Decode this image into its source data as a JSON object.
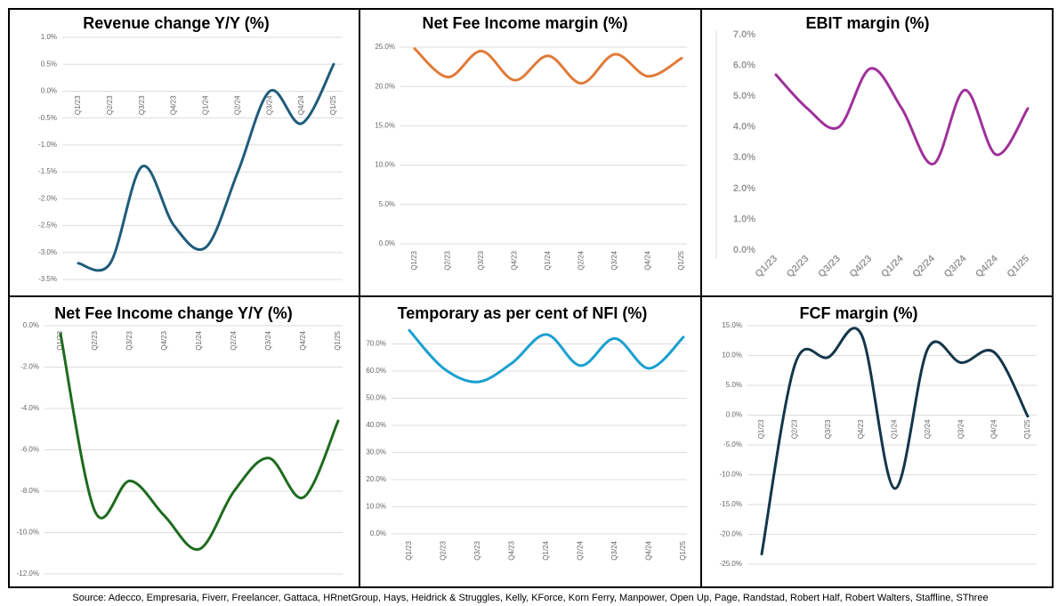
{
  "chart_data": [
    {
      "type": "line",
      "title": "Revenue change Y/Y (%)",
      "categories": [
        "Q1/23",
        "Q2/23",
        "Q3/23",
        "Q4/23",
        "Q1/24",
        "Q2/24",
        "Q3/24",
        "Q4/24",
        "Q1/25"
      ],
      "values": [
        -3.2,
        -3.2,
        -1.4,
        -2.5,
        -2.9,
        -1.5,
        0.0,
        -0.6,
        0.5
      ],
      "color": "#1f5c7a",
      "grid": true,
      "ylim": [
        -3.5,
        1.0
      ],
      "yticks": [
        {
          "value": -3.5,
          "label": "-3.5%"
        },
        {
          "value": -3.0,
          "label": "-3.0%"
        },
        {
          "value": -2.5,
          "label": "-2.5%"
        },
        {
          "value": -2.0,
          "label": "-2.0%"
        },
        {
          "value": -1.5,
          "label": "-1.5%"
        },
        {
          "value": -1.0,
          "label": "-1.0%"
        },
        {
          "value": -0.5,
          "label": "-0.5%"
        },
        {
          "value": 0,
          "label": "0.0%"
        },
        {
          "value": 0.5,
          "label": "0.5%"
        },
        {
          "value": 1.0,
          "label": "1.0%"
        }
      ]
    },
    {
      "type": "line",
      "title": "Net Fee Income  margin (%)",
      "categories": [
        "Q1/23",
        "Q2/23",
        "Q3/23",
        "Q4/23",
        "Q1/24",
        "Q2/24",
        "Q3/24",
        "Q4/24",
        "Q1/25"
      ],
      "values": [
        24.8,
        21.2,
        24.5,
        20.8,
        23.9,
        20.4,
        24.1,
        21.3,
        23.6
      ],
      "color": "#e07b39",
      "grid": true,
      "ylim": [
        0,
        25
      ],
      "yticks": [
        {
          "value": 0,
          "label": "0.0%"
        },
        {
          "value": 5,
          "label": "5.0%"
        },
        {
          "value": 10,
          "label": "10.0%"
        },
        {
          "value": 15,
          "label": "15.0%"
        },
        {
          "value": 20,
          "label": "20.0%"
        },
        {
          "value": 25,
          "label": "25.0%"
        }
      ]
    },
    {
      "type": "line",
      "title": "EBIT margin (%)",
      "categories": [
        "Q1/23",
        "Q2/23",
        "Q3/23",
        "Q4/23",
        "Q1/24",
        "Q2/24",
        "Q3/24",
        "Q4/24",
        "Q1/25"
      ],
      "values": [
        5.7,
        4.6,
        4.0,
        5.9,
        4.6,
        2.8,
        5.2,
        3.1,
        4.6
      ],
      "color": "#a0309a",
      "grid": false,
      "ylim": [
        0,
        7
      ],
      "yticks": [
        {
          "value": 0,
          "label": "0.0%"
        },
        {
          "value": 1,
          "label": "1.0%"
        },
        {
          "value": 2,
          "label": "2.0%"
        },
        {
          "value": 3,
          "label": "3.0%"
        },
        {
          "value": 4,
          "label": "4.0%"
        },
        {
          "value": 5,
          "label": "5.0%"
        },
        {
          "value": 6,
          "label": "6.0%"
        },
        {
          "value": 7,
          "label": "7.0%"
        }
      ]
    },
    {
      "type": "line",
      "title": "Net Fee Income change Y/Y (%)",
      "categories": [
        "Q1/23",
        "Q2/23",
        "Q3/23",
        "Q4/23",
        "Q1/24",
        "Q2/24",
        "Q3/24",
        "Q4/24",
        "Q1/25"
      ],
      "values": [
        -0.4,
        -9.0,
        -7.5,
        -9.2,
        -10.8,
        -8.0,
        -6.4,
        -8.3,
        -4.6
      ],
      "color": "#1e6b1e",
      "grid": true,
      "ylim": [
        -12,
        0
      ],
      "yticks": [
        {
          "value": -12,
          "label": "-12.0%"
        },
        {
          "value": -10,
          "label": "-10.0%"
        },
        {
          "value": -8,
          "label": "-8.0%"
        },
        {
          "value": -6,
          "label": "-6.0%"
        },
        {
          "value": -4,
          "label": "-4.0%"
        },
        {
          "value": -2,
          "label": "-2.0%"
        },
        {
          "value": 0,
          "label": "0.0%"
        }
      ]
    },
    {
      "type": "line",
      "title": "Temporary as per cent of NFI (%)",
      "categories": [
        "Q1/23",
        "Q2/23",
        "Q3/23",
        "Q4/23",
        "Q1/24",
        "Q2/24",
        "Q3/24",
        "Q4/24",
        "Q1/25"
      ],
      "values": [
        75,
        61,
        56,
        63,
        73.5,
        62,
        72,
        61,
        72.5
      ],
      "color": "#1aa0d0",
      "grid": true,
      "ylim": [
        0,
        80
      ],
      "yticks": [
        {
          "value": 0,
          "label": "0.0%"
        },
        {
          "value": 10,
          "label": "10.0%"
        },
        {
          "value": 20,
          "label": "20.0%"
        },
        {
          "value": 30,
          "label": "30.0%"
        },
        {
          "value": 40,
          "label": "40.0%"
        },
        {
          "value": 50,
          "label": "50.0%"
        },
        {
          "value": 60,
          "label": "60.0%"
        },
        {
          "value": 70,
          "label": "70.0%"
        }
      ]
    },
    {
      "type": "line",
      "title": "FCF margin (%)",
      "categories": [
        "Q1/23",
        "Q2/23",
        "Q3/23",
        "Q4/23",
        "Q1/24",
        "Q2/24",
        "Q3/24",
        "Q4/24",
        "Q1/25"
      ],
      "values": [
        -23.3,
        8.5,
        9.7,
        13.5,
        -12.3,
        11.2,
        8.8,
        10.5,
        -0.2
      ],
      "color": "#13364a",
      "grid": true,
      "ylim": [
        -25,
        15
      ],
      "yticks": [
        {
          "value": -25,
          "label": "-25.0%"
        },
        {
          "value": -20,
          "label": "-20.0%"
        },
        {
          "value": -15,
          "label": "-15.0%"
        },
        {
          "value": -10,
          "label": "-10.0%"
        },
        {
          "value": -5,
          "label": "-5.0%"
        },
        {
          "value": 0,
          "label": "0.0%"
        },
        {
          "value": 5,
          "label": "5.0%"
        },
        {
          "value": 10,
          "label": "10.0%"
        },
        {
          "value": 15,
          "label": "15.0%"
        }
      ]
    }
  ],
  "source": "Source: Adecco, Empresaria, Fiverr, Freelancer, Gattaca, HRnetGroup, Hays, Heidrick & Struggles, Kelly,  KForce, Korn Ferry, Manpower, Open Up, Page, Randstad, Robert Half, Robert Walters, Staffline, SThree"
}
